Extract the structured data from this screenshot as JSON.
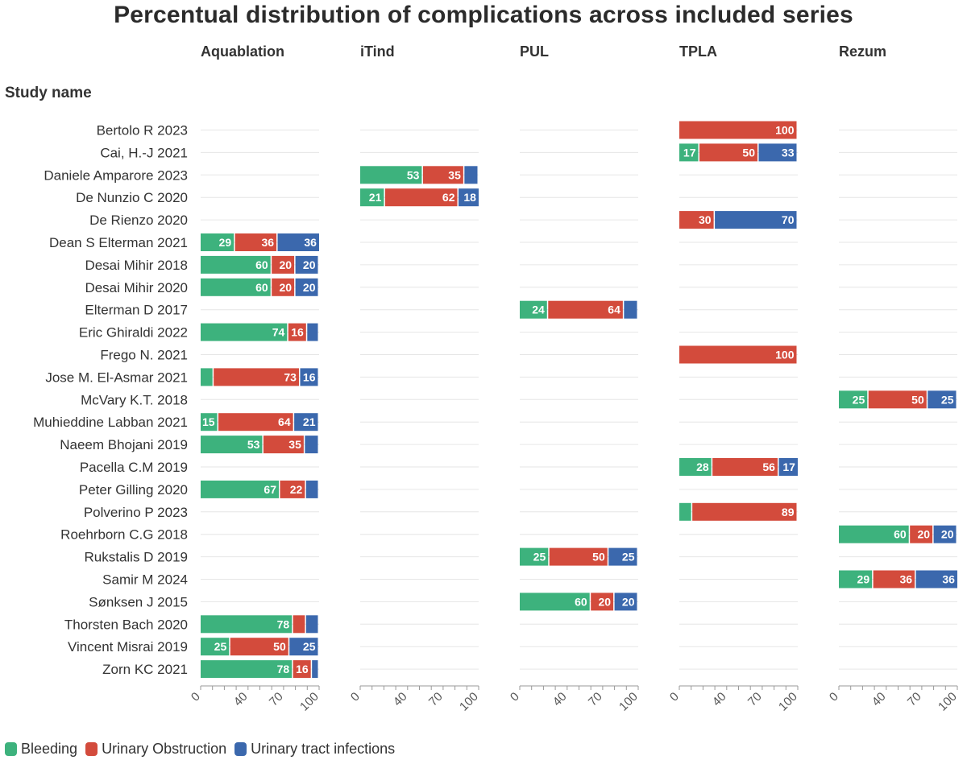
{
  "chart_data": {
    "type": "bar",
    "orientation": "horizontal",
    "stacked": true,
    "title": "Percentual distribution of complications across included series",
    "row_header": "Study name",
    "categories": [
      "Bertolo R 2023",
      "Cai, H.-J 2021",
      "Daniele Amparore 2023",
      "De Nunzio C 2020",
      "De Rienzo 2020",
      "Dean S Elterman 2021",
      "Desai Mihir 2018",
      "Desai Mihir 2020",
      "Elterman D 2017",
      "Eric Ghiraldi 2022",
      "Frego N. 2021",
      "Jose M. El-Asmar 2021",
      "McVary K.T. 2018",
      "Muhieddine Labban 2021",
      "Naeem Bhojani 2019",
      "Pacella C.M 2019",
      "Peter Gilling 2020",
      "Polverino P 2023",
      "Roehrborn C.G 2018",
      "Rukstalis D 2019",
      "Samir M 2024",
      "Sønksen J 2015",
      "Thorsten Bach 2020",
      "Vincent Misrai 2019",
      "Zorn KC 2021"
    ],
    "legend": [
      {
        "name": "Bleeding",
        "color": "#3db27d"
      },
      {
        "name": "Urinary Obstruction",
        "color": "#d34b3c"
      },
      {
        "name": "Urinary tract infections",
        "color": "#3b68ad"
      }
    ],
    "xlim": [
      0,
      100
    ],
    "xticks": [
      "0",
      "40",
      "70",
      "100"
    ],
    "xtick_values": [
      0,
      40,
      70,
      100
    ],
    "panels": [
      {
        "name": "Aquablation",
        "rows": [
          {
            "study": "Dean S Elterman 2021",
            "values": [
              29,
              36,
              36
            ]
          },
          {
            "study": "Desai Mihir 2018",
            "values": [
              60,
              20,
              20
            ]
          },
          {
            "study": "Desai Mihir 2020",
            "values": [
              60,
              20,
              20
            ]
          },
          {
            "study": "Eric Ghiraldi 2022",
            "values": [
              74,
              16,
              10
            ]
          },
          {
            "study": "Jose M. El-Asmar 2021",
            "values": [
              11,
              73,
              16
            ]
          },
          {
            "study": "Muhieddine Labban 2021",
            "values": [
              15,
              64,
              21
            ]
          },
          {
            "study": "Naeem Bhojani 2019",
            "values": [
              53,
              35,
              12
            ]
          },
          {
            "study": "Peter Gilling 2020",
            "values": [
              67,
              22,
              11
            ]
          },
          {
            "study": "Thorsten Bach 2020",
            "values": [
              78,
              11,
              11
            ]
          },
          {
            "study": "Vincent Misrai 2019",
            "values": [
              25,
              50,
              25
            ]
          },
          {
            "study": "Zorn KC 2021",
            "values": [
              78,
              16,
              6
            ]
          }
        ]
      },
      {
        "name": "iTind",
        "rows": [
          {
            "study": "Daniele Amparore 2023",
            "values": [
              53,
              35,
              12
            ]
          },
          {
            "study": "De Nunzio C 2020",
            "values": [
              21,
              62,
              18
            ]
          }
        ]
      },
      {
        "name": "PUL",
        "rows": [
          {
            "study": "Elterman D 2017",
            "values": [
              24,
              64,
              12
            ]
          },
          {
            "study": "Rukstalis D 2019",
            "values": [
              25,
              50,
              25
            ]
          },
          {
            "study": "Sønksen J 2015",
            "values": [
              60,
              20,
              20
            ]
          }
        ]
      },
      {
        "name": "TPLA",
        "rows": [
          {
            "study": "Bertolo R 2023",
            "values": [
              0,
              100,
              0
            ]
          },
          {
            "study": "Cai, H.-J 2021",
            "values": [
              17,
              50,
              33
            ]
          },
          {
            "study": "De Rienzo 2020",
            "values": [
              0,
              30,
              70
            ]
          },
          {
            "study": "Frego N. 2021",
            "values": [
              0,
              100,
              0
            ]
          },
          {
            "study": "Pacella C.M 2019",
            "values": [
              28,
              56,
              17
            ]
          },
          {
            "study": "Polverino P 2023",
            "values": [
              11,
              89,
              0
            ]
          }
        ]
      },
      {
        "name": "Rezum",
        "rows": [
          {
            "study": "McVary K.T. 2018",
            "values": [
              25,
              50,
              25
            ]
          },
          {
            "study": "Roehrborn C.G 2018",
            "values": [
              60,
              20,
              20
            ]
          },
          {
            "study": "Samir M 2024",
            "values": [
              29,
              36,
              36
            ]
          }
        ]
      }
    ]
  }
}
